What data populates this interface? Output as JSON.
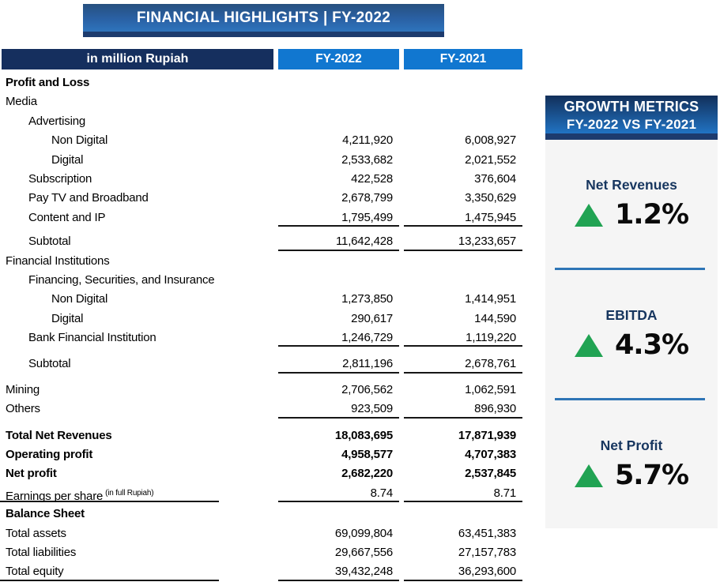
{
  "title_banner": {
    "text": "FINANCIAL HIGHLIGHTS | FY-2022"
  },
  "table": {
    "header": {
      "label": "in million Rupiah",
      "col1": "FY-2022",
      "col2": "FY-2021"
    },
    "rows": [
      {
        "label": "Profit and Loss",
        "indent": 0,
        "bold": true
      },
      {
        "label": "Media",
        "indent": 0
      },
      {
        "label": "Advertising",
        "indent": 1
      },
      {
        "label": "Non Digital",
        "indent": 2,
        "fy2022": "4,211,920",
        "fy2021": "6,008,927"
      },
      {
        "label": "Digital",
        "indent": 2,
        "fy2022": "2,533,682",
        "fy2021": "2,021,552"
      },
      {
        "label": "Subscription",
        "indent": 1,
        "fy2022": "422,528",
        "fy2021": "376,604"
      },
      {
        "label": "Pay TV and Broadband",
        "indent": 1,
        "fy2022": "2,678,799",
        "fy2021": "3,350,629"
      },
      {
        "label": "Content and IP",
        "indent": 1,
        "fy2022": "1,795,499",
        "fy2021": "1,475,945",
        "underline": "values"
      },
      {
        "label": "Subtotal",
        "indent": 1,
        "fy2022": "11,642,428",
        "fy2021": "13,233,657",
        "underline": "values",
        "gap": 6
      },
      {
        "label": "Financial Institutions",
        "indent": 0
      },
      {
        "label": "Financing, Securities, and Insurance",
        "indent": 1
      },
      {
        "label": "Non Digital",
        "indent": 2,
        "fy2022": "1,273,850",
        "fy2021": "1,414,951"
      },
      {
        "label": "Digital",
        "indent": 2,
        "fy2022": "290,617",
        "fy2021": "144,590"
      },
      {
        "label": "Bank Financial Institution",
        "indent": 1,
        "fy2022": "1,246,729",
        "fy2021": "1,119,220",
        "underline": "values"
      },
      {
        "label": "Subtotal",
        "indent": 1,
        "fy2022": "2,811,196",
        "fy2021": "2,678,761",
        "underline": "values",
        "gap": 9
      },
      {
        "label": "Mining",
        "indent": 0,
        "fy2022": "2,706,562",
        "fy2021": "1,062,591",
        "gap": 8
      },
      {
        "label": "Others",
        "indent": 0,
        "fy2022": "923,509",
        "fy2021": "896,930",
        "underline": "values"
      },
      {
        "label": "Total Net Revenues",
        "indent": 0,
        "bold": true,
        "fy2022": "18,083,695",
        "fy2021": "17,871,939",
        "gap": 9
      },
      {
        "label": "Operating profit",
        "indent": 0,
        "bold": true,
        "fy2022": "4,958,577",
        "fy2021": "4,707,383"
      },
      {
        "label": "Net profit",
        "indent": 0,
        "bold": true,
        "fy2022": "2,682,220",
        "fy2021": "2,537,845"
      },
      {
        "label": "Earnings per share",
        "sup": "(in full Rupiah)",
        "indent": 0,
        "fy2022": "8.74",
        "fy2021": "8.71",
        "underline": "full"
      },
      {
        "label": "Balance Sheet",
        "indent": 0,
        "bold": true,
        "gap": 2
      },
      {
        "label": "Total assets",
        "indent": 0,
        "fy2022": "69,099,804",
        "fy2021": "63,451,383"
      },
      {
        "label": "Total liabilities",
        "indent": 0,
        "fy2022": "29,667,556",
        "fy2021": "27,157,783"
      },
      {
        "label": "Total equity",
        "indent": 0,
        "fy2022": "39,432,248",
        "fy2021": "36,293,600",
        "underline": "full"
      }
    ]
  },
  "growth_panel": {
    "title_line1": "GROWTH METRICS",
    "title_line2": "FY-2022 VS FY-2021",
    "metrics": [
      {
        "label": "Net Revenues",
        "value": "1.2%",
        "direction": "up"
      },
      {
        "label": "EBITDA",
        "value": "4.3%",
        "direction": "up"
      },
      {
        "label": "Net Profit",
        "value": "5.7%",
        "direction": "up"
      }
    ]
  },
  "colors": {
    "header_navy": "#152f5e",
    "fy_header_blue": "#1177d0",
    "banner_top": "#27507f",
    "banner_mid": "#2a61a5",
    "banner_bottom": "#2e74bc",
    "banner_strip": "#1d3b6e",
    "growth_top": "#122f5a",
    "growth_bottom": "#2173c3",
    "panel_bg": "#f5f5f5",
    "divider_blue": "#2e75b6",
    "up_green": "#21a353",
    "metric_navy": "#17365f"
  }
}
